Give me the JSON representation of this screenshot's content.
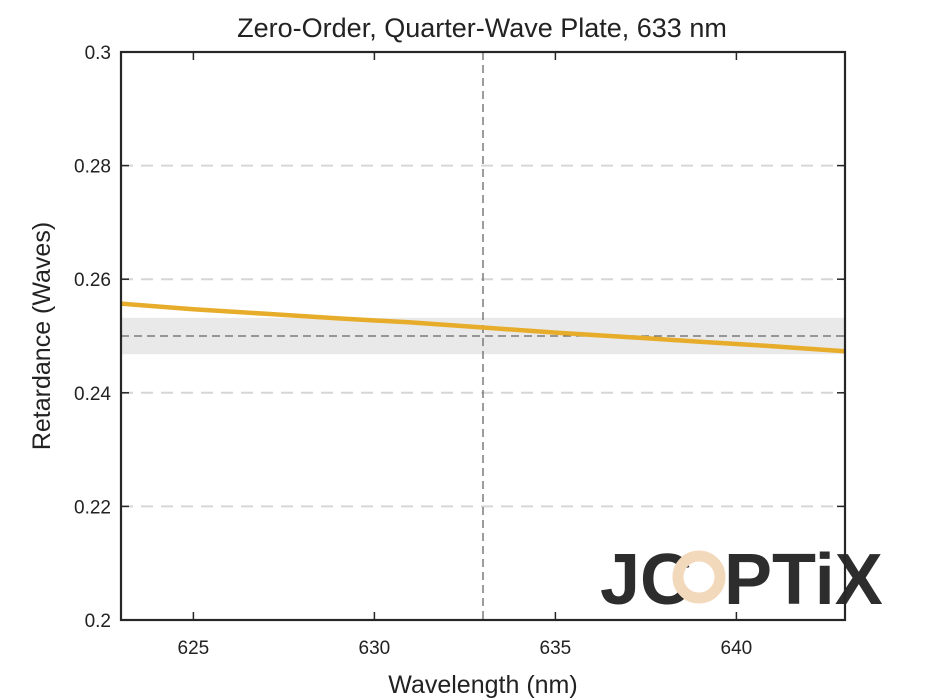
{
  "chart_data": {
    "type": "line",
    "title": "Zero-Order, Quarter-Wave Plate, 633 nm",
    "xlabel": "Wavelength (nm)",
    "ylabel": "Retardance (Waves)",
    "xlim": [
      623,
      643
    ],
    "ylim": [
      0.2,
      0.3
    ],
    "xticks": [
      625,
      630,
      635,
      640
    ],
    "yticks": [
      0.2,
      0.22,
      0.24,
      0.26,
      0.28,
      0.3
    ],
    "ytick_labels": [
      "0.2",
      "0.22",
      "0.24",
      "0.26",
      "0.28",
      "0.3"
    ],
    "grid": "horizontal dashed",
    "design_wavelength": 633,
    "target_retardance": 0.25,
    "tolerance_band": [
      0.2468,
      0.2532
    ],
    "series": [
      {
        "color": "#E6AC2A",
        "x": [
          623,
          625,
          627,
          629,
          631,
          633,
          635,
          637,
          639,
          641,
          643
        ],
        "y": [
          0.2557,
          0.2547,
          0.2539,
          0.2531,
          0.2524,
          0.2515,
          0.2506,
          0.2498,
          0.249,
          0.2482,
          0.2473
        ]
      }
    ],
    "logo": "JCOPTIX"
  }
}
